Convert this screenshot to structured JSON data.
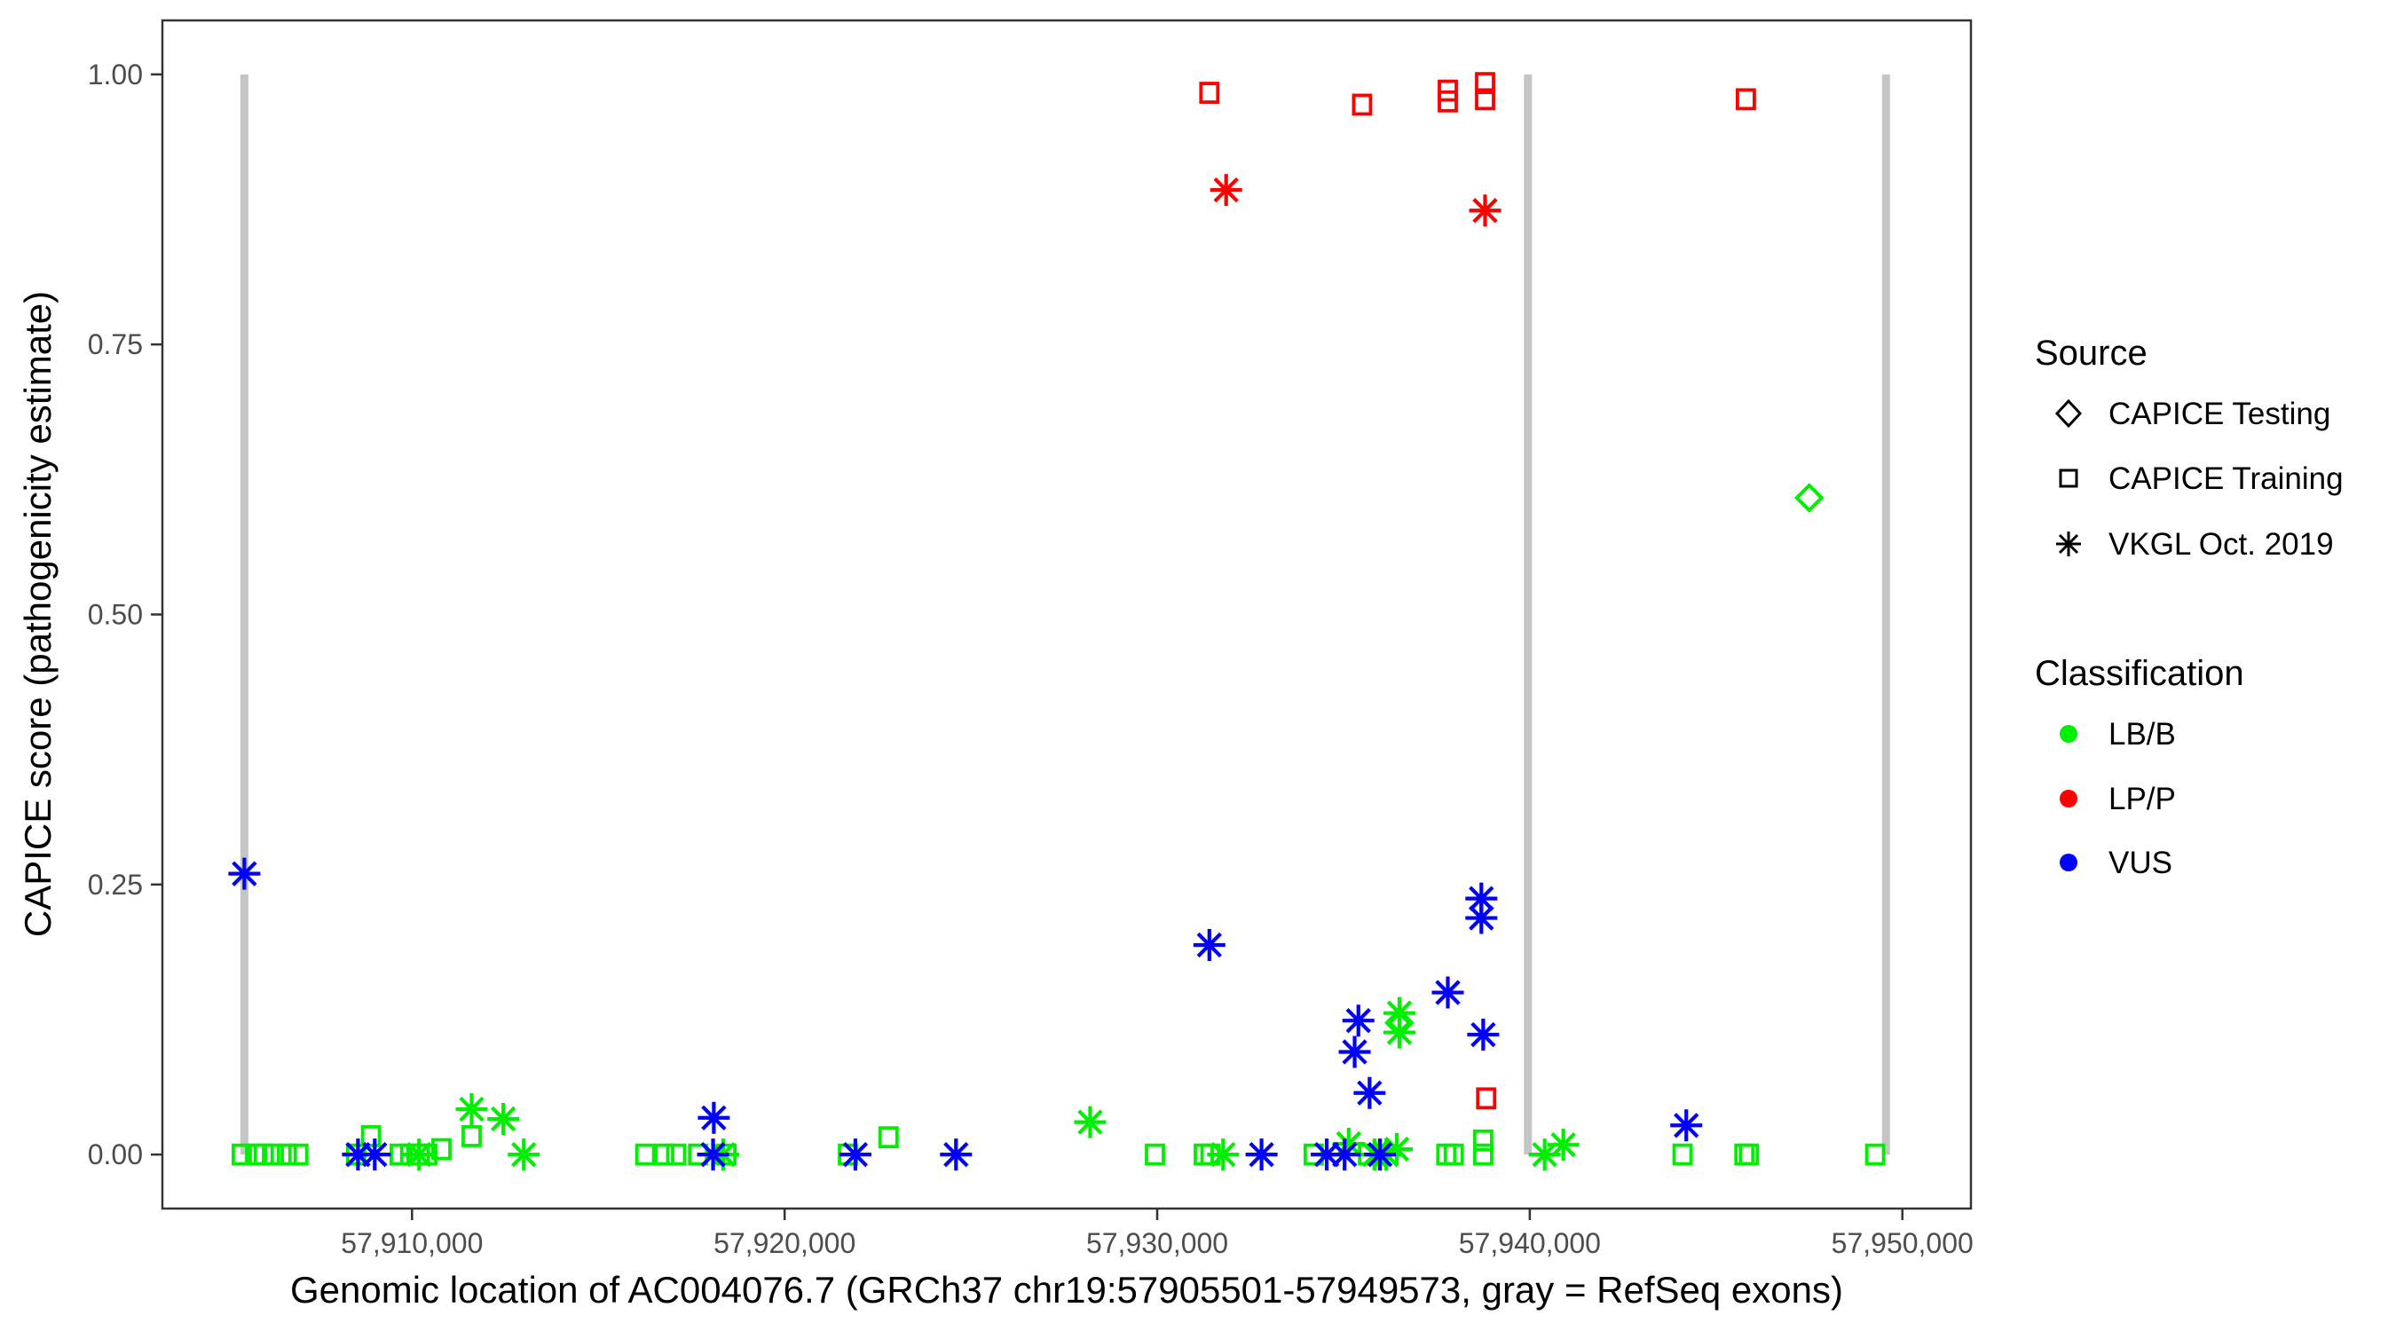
{
  "figure": {
    "source_legend": {
      "title": "Source",
      "items": [
        {
          "label": "CAPICE Testing",
          "shape": "diamond",
          "icon": "diamond-outline"
        },
        {
          "label": "CAPICE Training",
          "shape": "square",
          "icon": "square-outline"
        },
        {
          "label": "VKGL Oct. 2019",
          "shape": "asterisk",
          "icon": "asterisk-glyph"
        }
      ]
    },
    "classification_legend": {
      "title": "Classification",
      "items": [
        {
          "label": "LB/B",
          "color": "#00ee00"
        },
        {
          "label": "LP/P",
          "color": "#ff0000"
        },
        {
          "label": "VUS",
          "color": "#0000ff"
        }
      ]
    }
  },
  "chart_data": {
    "type": "scatter",
    "title": "",
    "xlabel": "Genomic location of AC004076.7 (GRCh37 chr19:57905501-57949573, gray = RefSeq exons)",
    "ylabel": "CAPICE score (pathogenicity estimate)",
    "xlim": [
      57903300,
      57951840
    ],
    "ylim": [
      -0.05,
      1.05
    ],
    "grid": "off",
    "legend_position": "right",
    "x_ticks": [
      {
        "value": 57910000,
        "label": "57,910,000"
      },
      {
        "value": 57920000,
        "label": "57,920,000"
      },
      {
        "value": 57930000,
        "label": "57,930,000"
      },
      {
        "value": 57940000,
        "label": "57,940,000"
      },
      {
        "value": 57950000,
        "label": "57,950,000"
      }
    ],
    "y_ticks": [
      {
        "value": 0.0,
        "label": "0.00"
      },
      {
        "value": 0.25,
        "label": "0.25"
      },
      {
        "value": 0.5,
        "label": "0.50"
      },
      {
        "value": 0.75,
        "label": "0.75"
      },
      {
        "value": 1.0,
        "label": "1.00"
      }
    ],
    "refseq_exons": {
      "color": "#c5c5c5",
      "score_span": [
        0,
        1
      ],
      "positions": [
        57905500,
        57939950,
        57949560
      ]
    },
    "colors": {
      "LB/B": "#00ee00",
      "LP/P": "#ff0000",
      "VUS": "#0000ff",
      "exon_gray": "#c5c5c5"
    },
    "series": [
      {
        "source": "CAPICE Testing",
        "classification": "LB/B",
        "shape": "diamond",
        "color": "#00ee00",
        "points": [
          [
            57947500,
            0.608
          ],
          [
            57936500,
            0.122
          ]
        ]
      },
      {
        "source": "CAPICE Training",
        "classification": "LP/P",
        "shape": "square",
        "color": "#ff0000",
        "points": [
          [
            57931400,
            0.983
          ],
          [
            57935500,
            0.972
          ],
          [
            57937800,
            0.985
          ],
          [
            57937800,
            0.975
          ],
          [
            57938800,
            0.992
          ],
          [
            57938800,
            0.977
          ],
          [
            57945800,
            0.977
          ],
          [
            57938830,
            0.052
          ]
        ]
      },
      {
        "source": "VKGL Oct. 2019",
        "classification": "LP/P",
        "shape": "asterisk",
        "color": "#ff0000",
        "points": [
          [
            57931850,
            0.893
          ],
          [
            57938800,
            0.874
          ]
        ]
      },
      {
        "source": "CAPICE Training",
        "classification": "LB/B",
        "shape": "square",
        "color": "#00ee00",
        "points": [
          [
            57905430,
            0.0
          ],
          [
            57905790,
            0.0
          ],
          [
            57906020,
            0.0
          ],
          [
            57906290,
            0.0
          ],
          [
            57906640,
            0.0
          ],
          [
            57906950,
            0.0
          ],
          [
            57908500,
            0.0
          ],
          [
            57908900,
            0.017
          ],
          [
            57909670,
            0.0
          ],
          [
            57909950,
            0.0
          ],
          [
            57910210,
            0.0
          ],
          [
            57910410,
            0.0
          ],
          [
            57910790,
            0.005
          ],
          [
            57911600,
            0.017
          ],
          [
            57916260,
            0.0
          ],
          [
            57916770,
            0.0
          ],
          [
            57917090,
            0.0
          ],
          [
            57917680,
            0.0
          ],
          [
            57918440,
            0.0
          ],
          [
            57921700,
            0.0
          ],
          [
            57922790,
            0.016
          ],
          [
            57929940,
            0.0
          ],
          [
            57931250,
            0.0
          ],
          [
            57931430,
            0.0
          ],
          [
            57934200,
            0.0
          ],
          [
            57935660,
            0.0
          ],
          [
            57937760,
            0.0
          ],
          [
            57937960,
            0.0
          ],
          [
            57938750,
            0.013
          ],
          [
            57938750,
            0.0
          ],
          [
            57944100,
            0.0
          ],
          [
            57945760,
            0.0
          ],
          [
            57945880,
            0.0
          ],
          [
            57949270,
            0.0
          ]
        ]
      },
      {
        "source": "VKGL Oct. 2019",
        "classification": "LB/B",
        "shape": "asterisk",
        "color": "#00ee00",
        "points": [
          [
            57910190,
            0.0
          ],
          [
            57911600,
            0.042
          ],
          [
            57912450,
            0.033
          ],
          [
            57913000,
            0.0
          ],
          [
            57918350,
            0.0
          ],
          [
            57928200,
            0.03
          ],
          [
            57931770,
            0.0
          ],
          [
            57935140,
            0.01
          ],
          [
            57935830,
            0.0
          ],
          [
            57936150,
            0.0
          ],
          [
            57936430,
            0.005
          ],
          [
            57936500,
            0.131
          ],
          [
            57936500,
            0.113
          ],
          [
            57940400,
            0.0
          ],
          [
            57940900,
            0.009
          ]
        ]
      },
      {
        "source": "VKGL Oct. 2019",
        "classification": "VUS",
        "shape": "asterisk",
        "color": "#0000ff",
        "points": [
          [
            57905500,
            0.26
          ],
          [
            57908550,
            0.0
          ],
          [
            57909000,
            0.0
          ],
          [
            57918080,
            0.0
          ],
          [
            57918100,
            0.034
          ],
          [
            57921900,
            0.0
          ],
          [
            57924600,
            0.0
          ],
          [
            57931400,
            0.194
          ],
          [
            57932800,
            0.0
          ],
          [
            57934550,
            0.0
          ],
          [
            57935030,
            0.0
          ],
          [
            57935300,
            0.095
          ],
          [
            57935400,
            0.124
          ],
          [
            57935700,
            0.057
          ],
          [
            57935980,
            0.0
          ],
          [
            57937800,
            0.15
          ],
          [
            57938700,
            0.237
          ],
          [
            57938700,
            0.219
          ],
          [
            57938750,
            0.111
          ],
          [
            57944200,
            0.027
          ]
        ]
      }
    ]
  }
}
